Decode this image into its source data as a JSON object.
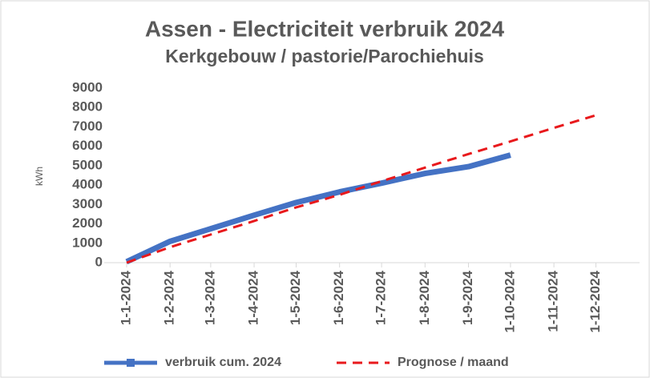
{
  "chart_data": {
    "type": "line",
    "title": "Assen -  Electriciteit verbruik 2024",
    "subtitle": "Kerkgebouw / pastorie/Parochiehuis",
    "y_label": "kWh",
    "x": [
      "1-1-2024",
      "1-2-2024",
      "1-3-2024",
      "1-4-2024",
      "1-5-2024",
      "1-6-2024",
      "1-7-2024",
      "1-8-2024",
      "1-9-2024",
      "1-10-2024",
      "1-11-2024",
      "1-12-2024"
    ],
    "series": [
      {
        "name": "verbruik cum. 2024",
        "color": "#4472c4",
        "style": "solid",
        "values": [
          50,
          1100,
          1750,
          2450,
          3100,
          3650,
          4100,
          4600,
          4950,
          5550,
          null,
          null
        ]
      },
      {
        "name": "Prognose / maand",
        "color": "#e8191c",
        "style": "dashed",
        "values": [
          0,
          800,
          1450,
          2150,
          2850,
          3500,
          4200,
          4900,
          5600,
          6250,
          6950,
          7600
        ]
      }
    ],
    "xlim": [
      "1-1-2024",
      "31-12-2024"
    ],
    "xticks": [
      "1-1-2024",
      "1-2-2024",
      "1-3-2024",
      "1-4-2024",
      "1-5-2024",
      "1-6-2024",
      "1-7-2024",
      "1-8-2024",
      "1-9-2024",
      "1-10-2024",
      "1-11-2024",
      "1-12-2024"
    ],
    "ylim": [
      0,
      9000
    ],
    "yticks": [
      0,
      1000,
      2000,
      3000,
      4000,
      5000,
      6000,
      7000,
      8000,
      9000
    ],
    "grid": false,
    "legend": "bottom"
  }
}
